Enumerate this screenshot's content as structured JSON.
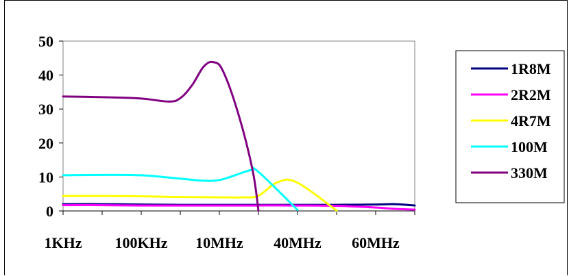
{
  "chart_data": {
    "type": "line",
    "categories": [
      "1KHz",
      "100KHz",
      "10MHz",
      "40MHz",
      "60MHz"
    ],
    "x_tick_count": 10,
    "ylim": [
      0,
      50
    ],
    "yticks": [
      0,
      10,
      20,
      30,
      40,
      50
    ],
    "grid": false,
    "legend_position": "right",
    "series": [
      {
        "name": "1R8M",
        "color": "#000080",
        "points": [
          [
            0,
            2.0
          ],
          [
            1,
            2.0
          ],
          [
            2,
            1.9
          ],
          [
            3,
            1.8
          ],
          [
            4,
            1.8
          ],
          [
            5,
            1.8
          ],
          [
            6,
            1.8
          ],
          [
            7,
            1.8
          ],
          [
            8,
            1.9
          ],
          [
            8.5,
            2.0
          ],
          [
            9,
            1.6
          ]
        ]
      },
      {
        "name": "2R2M",
        "color": "#FF00FF",
        "points": [
          [
            0,
            1.7
          ],
          [
            1,
            1.7
          ],
          [
            2,
            1.6
          ],
          [
            3,
            1.6
          ],
          [
            4,
            1.6
          ],
          [
            5,
            1.6
          ],
          [
            6,
            1.6
          ],
          [
            7,
            1.5
          ],
          [
            8,
            1.0
          ],
          [
            8.5,
            0.6
          ],
          [
            9,
            0.4
          ]
        ]
      },
      {
        "name": "4R7M",
        "color": "#FFFF00",
        "points": [
          [
            0,
            4.4
          ],
          [
            1,
            4.4
          ],
          [
            2,
            4.3
          ],
          [
            3,
            4.1
          ],
          [
            4,
            4.0
          ],
          [
            4.6,
            4.0
          ],
          [
            5,
            4.5
          ],
          [
            5.5,
            8.5
          ],
          [
            6,
            8.3
          ],
          [
            7,
            0.1
          ]
        ]
      },
      {
        "name": "100M",
        "color": "#00FFFF",
        "points": [
          [
            0,
            10.5
          ],
          [
            1,
            10.6
          ],
          [
            2,
            10.5
          ],
          [
            3,
            9.5
          ],
          [
            3.6,
            8.9
          ],
          [
            4,
            9.1
          ],
          [
            4.4,
            10.5
          ],
          [
            4.8,
            12.0
          ],
          [
            5,
            11.5
          ],
          [
            6,
            0.3
          ]
        ]
      },
      {
        "name": "330M",
        "color": "#800080",
        "points": [
          [
            0,
            33.7
          ],
          [
            1,
            33.5
          ],
          [
            2,
            33.1
          ],
          [
            2.7,
            32.2
          ],
          [
            3,
            33.2
          ],
          [
            3.3,
            37.0
          ],
          [
            3.6,
            42.5
          ],
          [
            3.85,
            43.8
          ],
          [
            4.1,
            41.0
          ],
          [
            4.5,
            28.0
          ],
          [
            4.85,
            12.0
          ],
          [
            5.0,
            0.1
          ]
        ]
      }
    ]
  }
}
